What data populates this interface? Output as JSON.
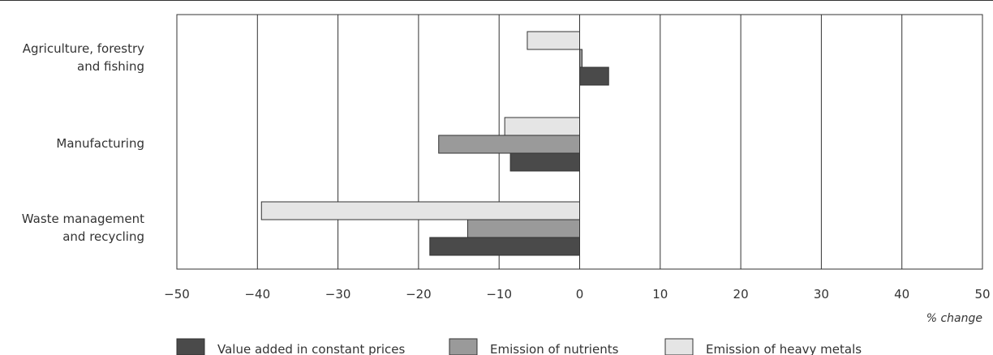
{
  "chart_data": {
    "type": "bar",
    "orientation": "horizontal",
    "categories": [
      [
        "Agriculture, forestry",
        "and fishing"
      ],
      [
        "Manufacturing"
      ],
      [
        "Waste management",
        "and recycling"
      ]
    ],
    "series": [
      {
        "name": "Emission of heavy metals",
        "values": [
          -6.5,
          -9.3,
          -39.5
        ],
        "color": "#e5e5e5"
      },
      {
        "name": "Emission of nutrients",
        "values": [
          0.3,
          -17.5,
          -13.9
        ],
        "color": "#9a9a9a"
      },
      {
        "name": "Value added in constant prices",
        "values": [
          3.6,
          -8.6,
          -18.6
        ],
        "color": "#4a4a4a"
      }
    ],
    "legend_order": [
      "Value added in constant prices",
      "Emission of nutrients",
      "Emission of heavy metals"
    ],
    "xlim": [
      -50,
      50
    ],
    "xticks": [
      -50,
      -40,
      -30,
      -20,
      -10,
      0,
      10,
      20,
      30,
      40,
      50
    ],
    "xtick_labels": [
      "−50",
      "−40",
      "−30",
      "−20",
      "−10",
      "0",
      "10",
      "20",
      "30",
      "40",
      "50"
    ],
    "x_unit_label": "% change",
    "grid": "vertical",
    "legend_position": "bottom"
  }
}
